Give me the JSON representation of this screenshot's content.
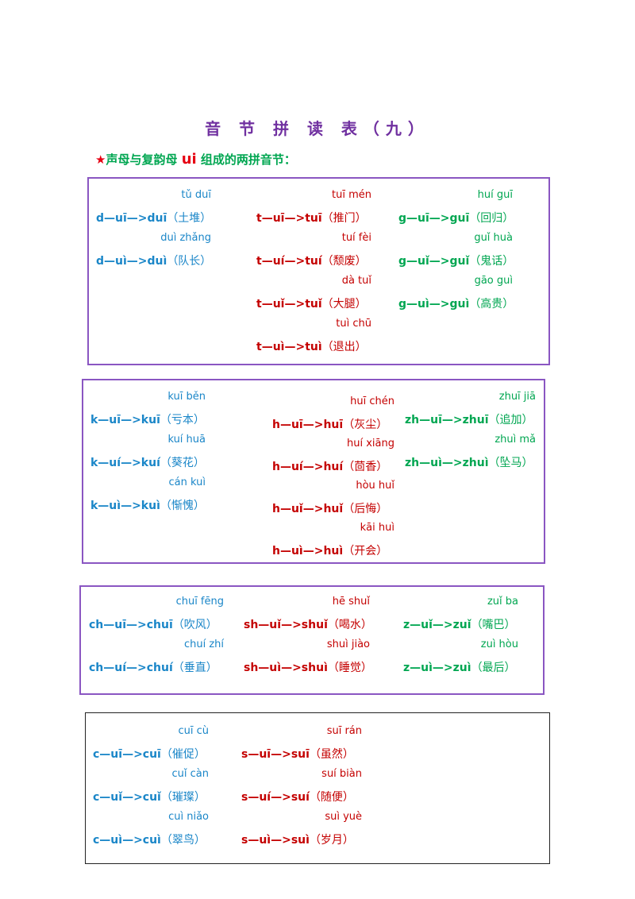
{
  "title": "音 节 拼 读 表（九）",
  "subtitle": {
    "star": "★",
    "prefix": "声母与复韵母 ",
    "ui": "ui",
    "suffix": " 组成的两拼音节："
  },
  "colors": {
    "blue": "#1a86c8",
    "red": "#c40000",
    "green": "#00a651",
    "purple": "#7030a0"
  },
  "boxes": [
    {
      "columns": [
        {
          "color": "blue",
          "items": [
            {
              "pinyin": "tǔ duī",
              "formula": "d—uī—>duī",
              "word": "（土堆）"
            },
            {
              "pinyin": "duì zhǎng",
              "formula": "d—uì—>duì",
              "word": "（队长）"
            }
          ]
        },
        {
          "color": "red",
          "items": [
            {
              "pinyin": "tuī mén",
              "formula": "t—uī—>tuī",
              "word": "（推门）"
            },
            {
              "pinyin": "tuí fèi",
              "formula": "t—uí—>tuí",
              "word": "（颓废）"
            },
            {
              "pinyin": "dà tuǐ",
              "formula": "t—uǐ—>tuǐ",
              "word": "（大腿）"
            },
            {
              "pinyin": "tuì chū",
              "formula": "t—uì—>tuì",
              "word": "（退出）"
            }
          ]
        },
        {
          "color": "green",
          "items": [
            {
              "pinyin": "huí guī",
              "formula": "g—uī—>guī",
              "word": "（回归）"
            },
            {
              "pinyin": "guǐ huà",
              "formula": "g—uǐ—>guǐ",
              "word": "（鬼话）"
            },
            {
              "pinyin": "gāo guì",
              "formula": "g—uì—>guì",
              "word": "（高贵）"
            }
          ]
        }
      ]
    },
    {
      "columns": [
        {
          "color": "blue",
          "items": [
            {
              "pinyin": "kuī běn",
              "formula": "k—uī—>kuī",
              "word": "（亏本）"
            },
            {
              "pinyin": "kuí huā",
              "formula": "k—uí—>kuí",
              "word": "（葵花）"
            },
            {
              "pinyin": "cán kuì",
              "formula": "k—uì—>kuì",
              "word": "（惭愧）"
            }
          ]
        },
        {
          "color": "red",
          "items": [
            {
              "pinyin": "huī chén",
              "formula": "h—uī—>huī",
              "word": "（灰尘）"
            },
            {
              "pinyin": "huí xiāng",
              "formula": "h—uí—>huí",
              "word": "（茴香）"
            },
            {
              "pinyin": "hòu huǐ",
              "formula": "h—uǐ—>huǐ",
              "word": "（后悔）"
            },
            {
              "pinyin": "kāi huì",
              "formula": "h—uì—>huì",
              "word": "（开会）"
            }
          ]
        },
        {
          "color": "green",
          "items": [
            {
              "pinyin": "zhuī jiā",
              "formula": "zh—uī—>zhuī",
              "word": "（追加）"
            },
            {
              "pinyin": "zhuì mǎ",
              "formula": "zh—uì—>zhuì",
              "word": "（坠马）"
            }
          ]
        }
      ]
    },
    {
      "columns": [
        {
          "color": "blue",
          "items": [
            {
              "pinyin": "chuī fēng",
              "formula": "ch—uī—>chuī",
              "word": "（吹风）"
            },
            {
              "pinyin": "chuí zhí",
              "formula": "ch—uí—>chuí",
              "word": "（垂直）"
            }
          ]
        },
        {
          "color": "red",
          "items": [
            {
              "pinyin": "hē shuǐ",
              "formula": "sh—uǐ—>shuǐ",
              "word": "（喝水）"
            },
            {
              "pinyin": "shuì jiào",
              "formula": "sh—uì—>shuì",
              "word": "（睡觉）"
            }
          ]
        },
        {
          "color": "green",
          "items": [
            {
              "pinyin": "zuǐ ba",
              "formula": "z—uǐ—>zuǐ",
              "word": "（嘴巴）"
            },
            {
              "pinyin": "zuì hòu",
              "formula": "z—uì—>zuì",
              "word": "（最后）"
            }
          ]
        }
      ]
    },
    {
      "columns": [
        {
          "color": "blue",
          "items": [
            {
              "pinyin": "cuī cù",
              "formula": "c—uī—>cuī",
              "word": "（催促）"
            },
            {
              "pinyin": "cuǐ càn",
              "formula": "c—uǐ—>cuǐ",
              "word": "（璀璨）"
            },
            {
              "pinyin": "cuì niǎo",
              "formula": "c—uì—>cuì",
              "word": "（翠鸟）"
            }
          ]
        },
        {
          "color": "red",
          "items": [
            {
              "pinyin": "suī rán",
              "formula": "s—uī—>suī",
              "word": "（虽然）"
            },
            {
              "pinyin": "suí biàn",
              "formula": "s—uí—>suí",
              "word": "（随便）"
            },
            {
              "pinyin": "suì yuè",
              "formula": "s—uì—>suì",
              "word": "（岁月）"
            }
          ]
        }
      ]
    }
  ]
}
